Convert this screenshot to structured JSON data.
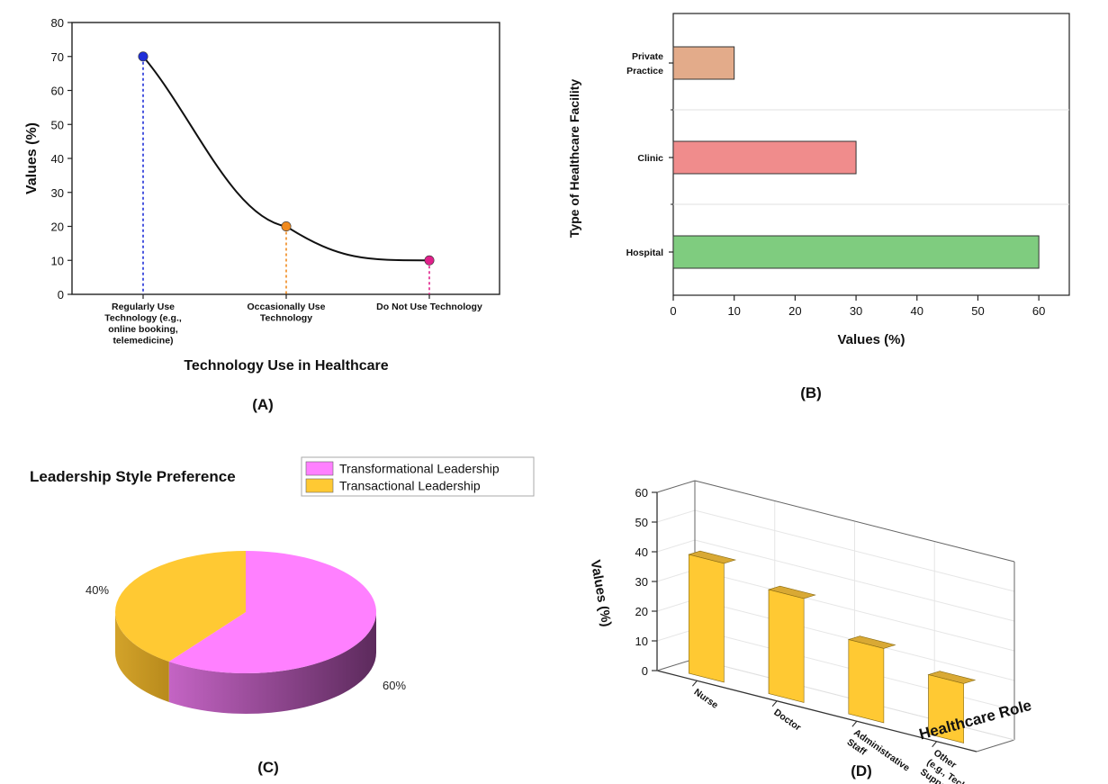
{
  "panels": {
    "A": "(A)",
    "B": "(B)",
    "C": "(C)",
    "D": "(D)"
  },
  "chart_data": [
    {
      "id": "A",
      "type": "line",
      "categories": [
        [
          "Regularly Use",
          "Technology (e.g.,",
          "online booking,",
          "telemedicine)"
        ],
        [
          "Occasionally Use",
          "Technology"
        ],
        [
          "Do Not Use Technology"
        ]
      ],
      "values": [
        70,
        20,
        10
      ],
      "xlabel": "Technology Use in Healthcare",
      "ylabel": "Values (%)",
      "ylim": [
        0,
        80
      ],
      "yticks": [
        0,
        10,
        20,
        30,
        40,
        50,
        60,
        70,
        80
      ],
      "point_colors": [
        "#1f2fd8",
        "#f08a1e",
        "#e0208a"
      ]
    },
    {
      "id": "B",
      "type": "bar",
      "orientation": "horizontal",
      "categories": [
        [
          "Hospital"
        ],
        [
          "Clinic"
        ],
        [
          "Private",
          "Practice"
        ]
      ],
      "values": [
        60,
        30,
        10
      ],
      "xlabel": "Values (%)",
      "ylabel": "Type of Healthcare Facility",
      "xlim": [
        0,
        65
      ],
      "xticks": [
        0,
        10,
        20,
        30,
        40,
        50,
        60
      ],
      "bar_colors": [
        "#7fcc7f",
        "#f08c8c",
        "#e3ab8a"
      ]
    },
    {
      "id": "C",
      "type": "pie",
      "title": "Leadership Style Preference",
      "labels": [
        "Transformational Leadership",
        "Transactional Leadership"
      ],
      "values": [
        60,
        40
      ],
      "value_labels": [
        "60%",
        "40%"
      ],
      "colors": [
        "#ff80ff",
        "#ffc933"
      ],
      "legend": "top-right"
    },
    {
      "id": "D",
      "type": "bar",
      "style": "3d",
      "categories": [
        [
          "Nurse"
        ],
        [
          "Doctor"
        ],
        [
          "Administrative",
          "Staff"
        ],
        [
          "Other",
          "(e.g., Technician,",
          "Support)"
        ]
      ],
      "values": [
        40,
        35,
        25,
        20
      ],
      "xlabel": "Healthcare Role",
      "ylabel": "Values (%)",
      "ylim": [
        0,
        60
      ],
      "yticks": [
        0,
        10,
        20,
        30,
        40,
        50,
        60
      ],
      "bar_color": "#ffc933"
    }
  ]
}
